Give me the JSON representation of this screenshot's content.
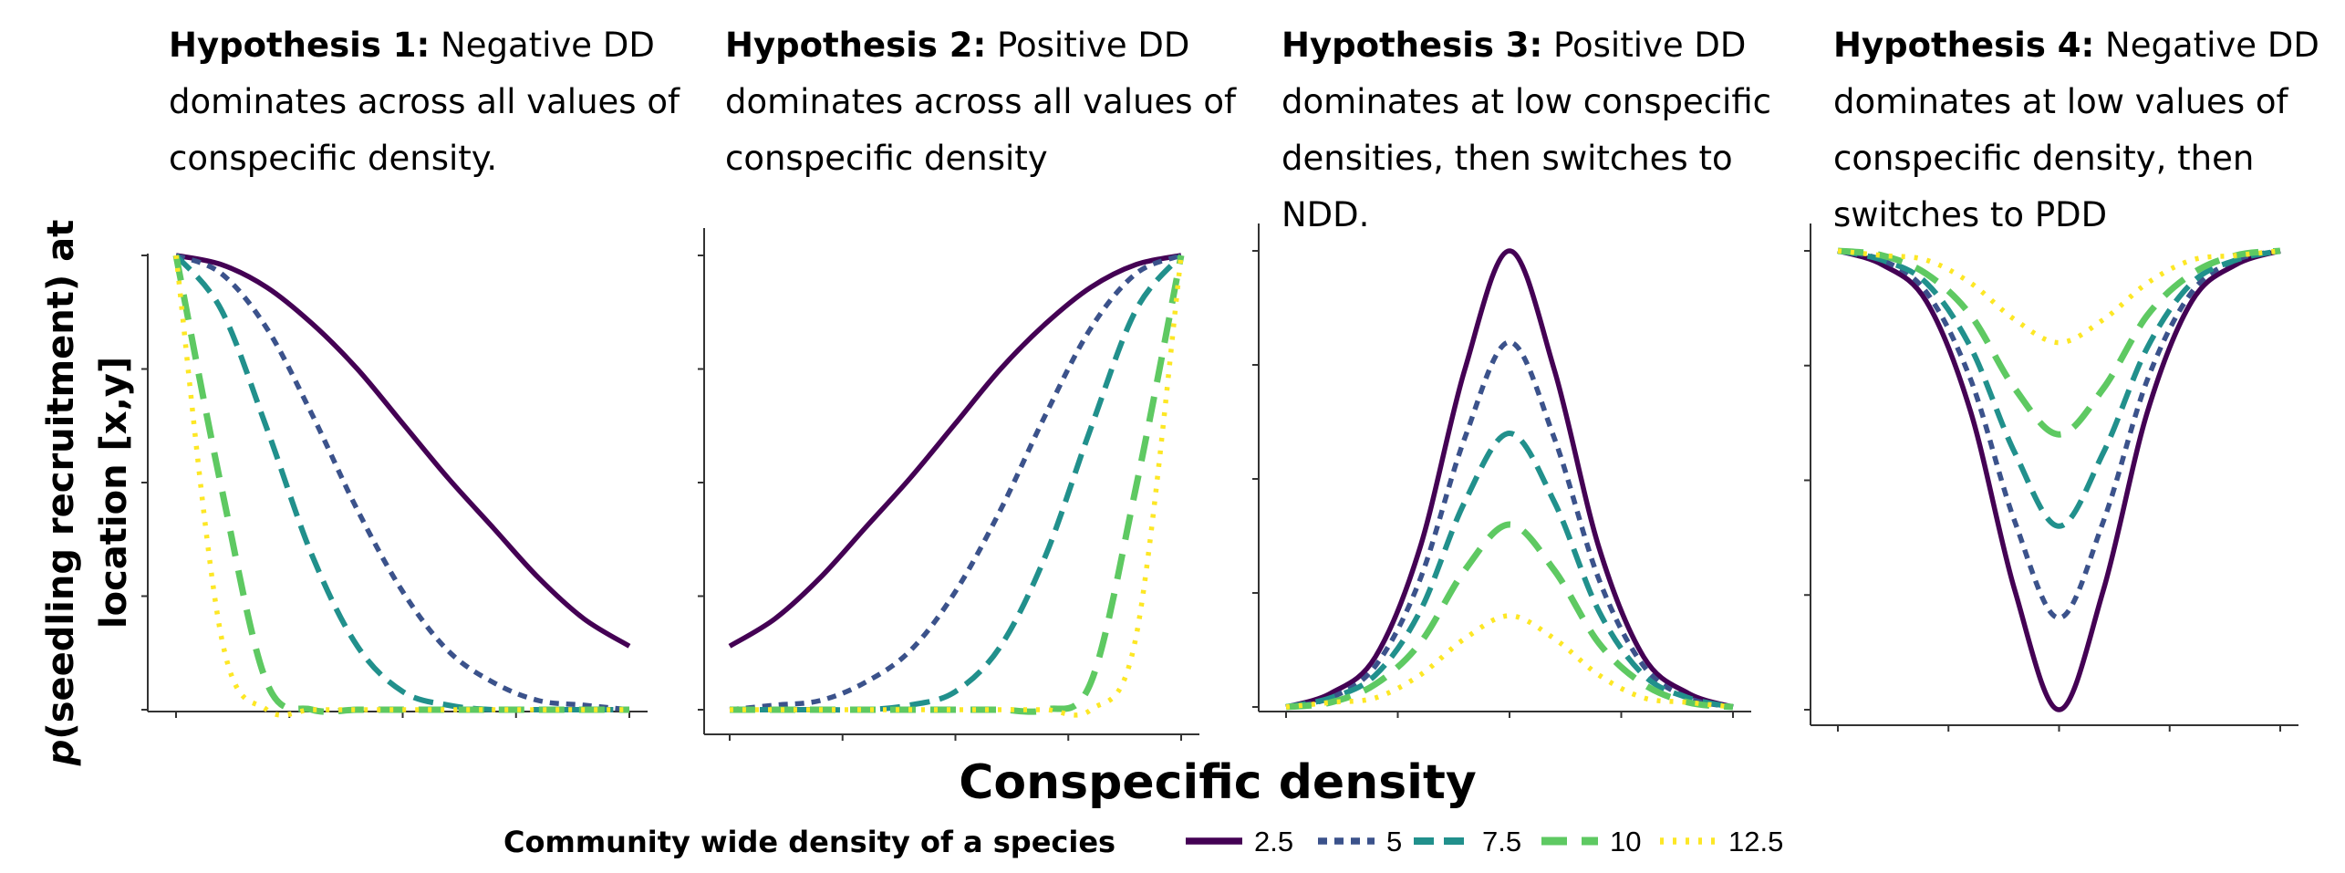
{
  "ylabel_italic": "p",
  "ylabel_line1_rest": "(seedling recruitment) at",
  "ylabel_line2": "location [x,y]",
  "xlabel": "Conspecific density",
  "legend": {
    "title": "Community wide density of a species",
    "entries": [
      {
        "label": "2.5",
        "color": "#440154",
        "dash": "solid"
      },
      {
        "label": "5",
        "color": "#3b528b",
        "dash": "dotted"
      },
      {
        "label": "7.5",
        "color": "#21908c",
        "dash": "dashed"
      },
      {
        "label": "10",
        "color": "#5ec962",
        "dash": "longdash"
      },
      {
        "label": "12.5",
        "color": "#fde725",
        "dash": "dotted-fine"
      }
    ]
  },
  "chart_data": [
    {
      "type": "line",
      "title_bold": "Hypothesis 1:",
      "title_lines": [
        "Negative DD",
        "dominates across all values of",
        "conspecific density."
      ],
      "xlabel": "Conspecific density",
      "ylabel": "p(seedling recruitment) at location [x,y]",
      "x": [
        0,
        0.1,
        0.2,
        0.3,
        0.4,
        0.5,
        0.6,
        0.7,
        0.8,
        0.9,
        1.0
      ],
      "series": [
        {
          "name": "2.5",
          "values": [
            1.0,
            0.98,
            0.93,
            0.85,
            0.75,
            0.63,
            0.51,
            0.4,
            0.29,
            0.2,
            0.14
          ]
        },
        {
          "name": "5",
          "values": [
            1.0,
            0.96,
            0.84,
            0.65,
            0.44,
            0.26,
            0.13,
            0.06,
            0.02,
            0.01,
            0.0
          ]
        },
        {
          "name": "7.5",
          "values": [
            1.0,
            0.88,
            0.62,
            0.34,
            0.14,
            0.04,
            0.01,
            0.0,
            0.0,
            0.0,
            0.0
          ]
        },
        {
          "name": "10",
          "values": [
            1.0,
            0.49,
            0.06,
            0.0,
            0.0,
            0.0,
            0.0,
            0.0,
            0.0,
            0.0,
            0.0
          ]
        },
        {
          "name": "12.5",
          "values": [
            1.0,
            0.16,
            0.0,
            0.0,
            0.0,
            0.0,
            0.0,
            0.0,
            0.0,
            0.0,
            0.0
          ]
        }
      ],
      "ylim": [
        0,
        1
      ]
    },
    {
      "type": "line",
      "title_bold": "Hypothesis 2:",
      "title_lines": [
        "Positive DD",
        "dominates across all values of",
        "conspecific density"
      ],
      "xlabel": "Conspecific density",
      "ylabel": "p(seedling recruitment) at location [x,y]",
      "x": [
        0,
        0.1,
        0.2,
        0.3,
        0.4,
        0.5,
        0.6,
        0.7,
        0.8,
        0.9,
        1.0
      ],
      "series": [
        {
          "name": "2.5",
          "values": [
            0.14,
            0.2,
            0.29,
            0.4,
            0.51,
            0.63,
            0.75,
            0.85,
            0.93,
            0.98,
            1.0
          ]
        },
        {
          "name": "5",
          "values": [
            0.0,
            0.01,
            0.02,
            0.06,
            0.13,
            0.26,
            0.44,
            0.65,
            0.84,
            0.96,
            1.0
          ]
        },
        {
          "name": "7.5",
          "values": [
            0.0,
            0.0,
            0.0,
            0.0,
            0.01,
            0.04,
            0.14,
            0.34,
            0.62,
            0.88,
            1.0
          ]
        },
        {
          "name": "10",
          "values": [
            0.0,
            0.0,
            0.0,
            0.0,
            0.0,
            0.0,
            0.0,
            0.0,
            0.06,
            0.49,
            1.0
          ]
        },
        {
          "name": "12.5",
          "values": [
            0.0,
            0.0,
            0.0,
            0.0,
            0.0,
            0.0,
            0.0,
            0.0,
            0.0,
            0.16,
            1.0
          ]
        }
      ],
      "ylim": [
        0,
        1
      ]
    },
    {
      "type": "line",
      "title_bold": "Hypothesis 3:",
      "title_lines": [
        "Positive DD",
        "dominates at low conspecific",
        "densities, then switches to",
        "NDD."
      ],
      "xlabel": "Conspecific density",
      "ylabel": "p(seedling recruitment) at location [x,y]",
      "x": [
        0,
        0.1,
        0.2,
        0.3,
        0.4,
        0.5,
        0.6,
        0.7,
        0.8,
        0.9,
        1.0
      ],
      "series": [
        {
          "name": "2.5",
          "values": [
            0.0,
            0.03,
            0.11,
            0.35,
            0.74,
            1.0,
            0.74,
            0.35,
            0.11,
            0.03,
            0.0
          ]
        },
        {
          "name": "5",
          "values": [
            0.0,
            0.02,
            0.09,
            0.28,
            0.59,
            0.8,
            0.59,
            0.28,
            0.09,
            0.02,
            0.0
          ]
        },
        {
          "name": "7.5",
          "values": [
            0.0,
            0.02,
            0.07,
            0.21,
            0.45,
            0.6,
            0.45,
            0.21,
            0.07,
            0.02,
            0.0
          ]
        },
        {
          "name": "10",
          "values": [
            0.0,
            0.01,
            0.05,
            0.14,
            0.3,
            0.4,
            0.3,
            0.14,
            0.05,
            0.01,
            0.0
          ]
        },
        {
          "name": "12.5",
          "values": [
            0.0,
            0.01,
            0.02,
            0.07,
            0.15,
            0.2,
            0.15,
            0.07,
            0.02,
            0.01,
            0.0
          ]
        }
      ],
      "ylim": [
        0,
        1
      ]
    },
    {
      "type": "line",
      "title_bold": "Hypothesis 4:",
      "title_lines": [
        "Negative DD",
        "dominates at low values of",
        "conspecific density, then",
        "switches to PDD"
      ],
      "xlabel": "Conspecific density",
      "ylabel": "p(seedling recruitment) at location [x,y]",
      "x": [
        0,
        0.1,
        0.2,
        0.3,
        0.4,
        0.5,
        0.6,
        0.7,
        0.8,
        0.9,
        1.0
      ],
      "series": [
        {
          "name": "2.5",
          "values": [
            1.0,
            0.97,
            0.89,
            0.65,
            0.26,
            0.0,
            0.26,
            0.65,
            0.89,
            0.97,
            1.0
          ]
        },
        {
          "name": "5",
          "values": [
            1.0,
            0.98,
            0.91,
            0.72,
            0.41,
            0.2,
            0.41,
            0.72,
            0.91,
            0.98,
            1.0
          ]
        },
        {
          "name": "7.5",
          "values": [
            1.0,
            0.98,
            0.93,
            0.79,
            0.56,
            0.4,
            0.56,
            0.79,
            0.93,
            0.98,
            1.0
          ]
        },
        {
          "name": "10",
          "values": [
            1.0,
            0.99,
            0.95,
            0.86,
            0.7,
            0.6,
            0.7,
            0.86,
            0.95,
            0.99,
            1.0
          ]
        },
        {
          "name": "12.5",
          "values": [
            1.0,
            0.99,
            0.98,
            0.93,
            0.85,
            0.8,
            0.85,
            0.93,
            0.98,
            0.99,
            1.0
          ]
        }
      ],
      "ylim": [
        0,
        1
      ]
    }
  ]
}
